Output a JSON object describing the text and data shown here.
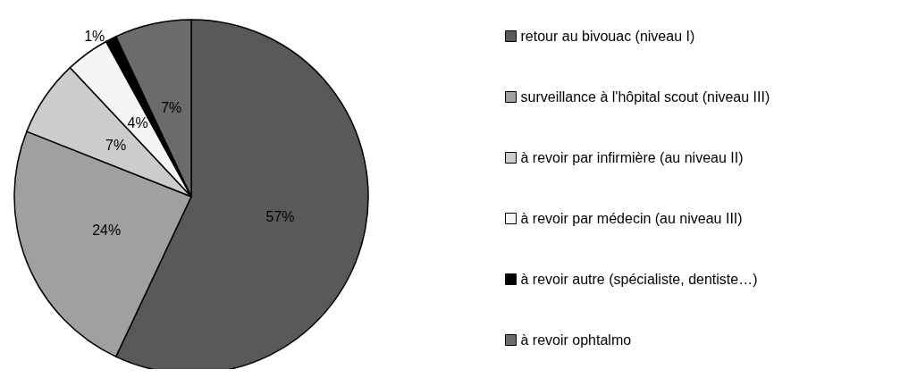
{
  "chart_data": {
    "type": "pie",
    "categories": [
      "retour au bivouac (niveau I)",
      "surveillance à l'hôpital scout (niveau III)",
      "à revoir par infirmière (au niveau II)",
      "à revoir par médecin (au niveau III)",
      "à revoir autre (spécialiste, dentiste…)",
      "à revoir ophtalmo"
    ],
    "values": [
      57,
      24,
      7,
      4,
      1,
      7
    ],
    "colors": [
      "#595959",
      "#a0a0a0",
      "#cccccc",
      "#f5f5f5",
      "#000000",
      "#6b6b6b"
    ],
    "value_labels": [
      "57%",
      "24%",
      "7%",
      "4%",
      "1%",
      "7%"
    ],
    "legend": "right"
  }
}
